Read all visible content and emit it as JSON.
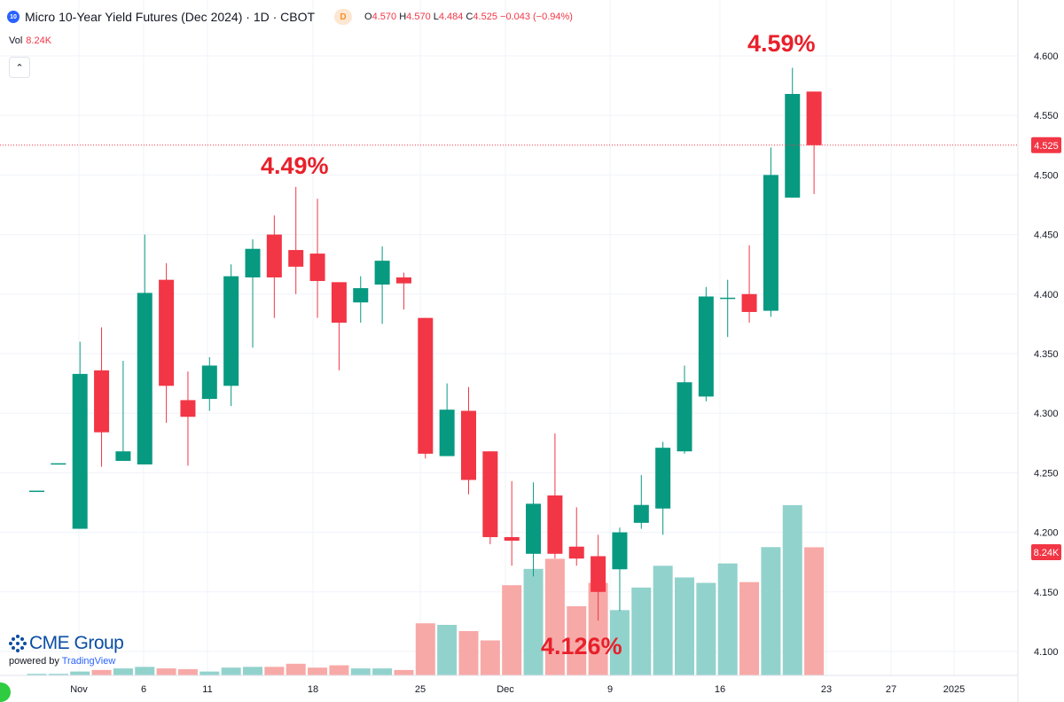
{
  "header": {
    "symbol_badge": "10",
    "title": "Micro 10-Year Yield Futures (Dec 2024) · 1D · CBOT",
    "delay_badge": "D",
    "ohlc": {
      "o_label": "O",
      "o": "4.570",
      "h_label": "H",
      "h": "4.570",
      "l_label": "L",
      "l": "4.484",
      "c_label": "C",
      "c": "4.525",
      "change": "−0.043 (−0.94%)"
    }
  },
  "volume_legend": {
    "label": "Vol",
    "value": "8.24K"
  },
  "annotations": {
    "high": "4.59%",
    "mid_high": "4.49%",
    "low": "4.126%"
  },
  "brand": {
    "name": "CME Group",
    "powered_by": "powered by",
    "platform": "TradingView"
  },
  "colors": {
    "up": "#089981",
    "down": "#f23645",
    "up_vol": "#92d2cc",
    "down_vol": "#f7a9a7",
    "annotation": "#e8202a"
  },
  "chart_data": {
    "type": "candlestick",
    "price_axis": {
      "ticks": [
        4.1,
        4.15,
        4.2,
        4.25,
        4.3,
        4.35,
        4.4,
        4.45,
        4.5,
        4.55,
        4.6
      ]
    },
    "time_axis": {
      "ticks": [
        "Nov",
        "6",
        "11",
        "18",
        "25",
        "Dec",
        "9",
        "16",
        "23",
        "27",
        "2025"
      ]
    },
    "last_price_label": "4.525",
    "volume_label": "8.24K",
    "candles": [
      {
        "o": 4.235,
        "h": 4.235,
        "l": 4.235,
        "c": 4.235,
        "v": 0.1
      },
      {
        "o": 4.258,
        "h": 4.258,
        "l": 4.258,
        "c": 4.258,
        "v": 0.1
      },
      {
        "o": 4.203,
        "h": 4.36,
        "l": 4.203,
        "c": 4.333,
        "v": 0.25
      },
      {
        "o": 4.336,
        "h": 4.372,
        "l": 4.255,
        "c": 4.284,
        "v": 0.35
      },
      {
        "o": 4.26,
        "h": 4.344,
        "l": 4.26,
        "c": 4.268,
        "v": 0.45
      },
      {
        "o": 4.257,
        "h": 4.45,
        "l": 4.257,
        "c": 4.401,
        "v": 0.55
      },
      {
        "o": 4.412,
        "h": 4.426,
        "l": 4.292,
        "c": 4.323,
        "v": 0.45
      },
      {
        "o": 4.311,
        "h": 4.335,
        "l": 4.256,
        "c": 4.297,
        "v": 0.4
      },
      {
        "o": 4.312,
        "h": 4.347,
        "l": 4.302,
        "c": 4.34,
        "v": 0.25
      },
      {
        "o": 4.323,
        "h": 4.425,
        "l": 4.306,
        "c": 4.415,
        "v": 0.5
      },
      {
        "o": 4.414,
        "h": 4.446,
        "l": 4.355,
        "c": 4.438,
        "v": 0.55
      },
      {
        "o": 4.45,
        "h": 4.466,
        "l": 4.38,
        "c": 4.414,
        "v": 0.55
      },
      {
        "o": 4.437,
        "h": 4.49,
        "l": 4.4,
        "c": 4.423,
        "v": 0.75
      },
      {
        "o": 4.434,
        "h": 4.48,
        "l": 4.38,
        "c": 4.411,
        "v": 0.5
      },
      {
        "o": 4.41,
        "h": 4.41,
        "l": 4.336,
        "c": 4.376,
        "v": 0.65
      },
      {
        "o": 4.393,
        "h": 4.415,
        "l": 4.376,
        "c": 4.405,
        "v": 0.45
      },
      {
        "o": 4.408,
        "h": 4.44,
        "l": 4.375,
        "c": 4.428,
        "v": 0.45
      },
      {
        "o": 4.414,
        "h": 4.418,
        "l": 4.387,
        "c": 4.409,
        "v": 0.35
      },
      {
        "o": 4.38,
        "h": 4.38,
        "l": 4.262,
        "c": 4.266,
        "v": 3.35
      },
      {
        "o": 4.264,
        "h": 4.325,
        "l": 4.264,
        "c": 4.303,
        "v": 3.25
      },
      {
        "o": 4.302,
        "h": 4.322,
        "l": 4.232,
        "c": 4.244,
        "v": 2.85
      },
      {
        "o": 4.268,
        "h": 4.268,
        "l": 4.19,
        "c": 4.196,
        "v": 2.25
      },
      {
        "o": 4.196,
        "h": 4.243,
        "l": 4.172,
        "c": 4.193,
        "v": 5.8
      },
      {
        "o": 4.182,
        "h": 4.242,
        "l": 4.163,
        "c": 4.224,
        "v": 6.85
      },
      {
        "o": 4.231,
        "h": 4.283,
        "l": 4.178,
        "c": 4.182,
        "v": 7.5
      },
      {
        "o": 4.188,
        "h": 4.221,
        "l": 4.172,
        "c": 4.178,
        "v": 4.45
      },
      {
        "o": 4.18,
        "h": 4.198,
        "l": 4.126,
        "c": 4.15,
        "v": 5.95
      },
      {
        "o": 4.169,
        "h": 4.204,
        "l": 4.134,
        "c": 4.2,
        "v": 4.2
      },
      {
        "o": 4.208,
        "h": 4.248,
        "l": 4.203,
        "c": 4.223,
        "v": 5.65
      },
      {
        "o": 4.22,
        "h": 4.276,
        "l": 4.198,
        "c": 4.271,
        "v": 7.05
      },
      {
        "o": 4.268,
        "h": 4.34,
        "l": 4.266,
        "c": 4.326,
        "v": 6.3
      },
      {
        "o": 4.314,
        "h": 4.406,
        "l": 4.31,
        "c": 4.398,
        "v": 5.95
      },
      {
        "o": 4.397,
        "h": 4.412,
        "l": 4.364,
        "c": 4.397,
        "v": 7.2
      },
      {
        "o": 4.4,
        "h": 4.441,
        "l": 4.376,
        "c": 4.385,
        "v": 6.0
      },
      {
        "o": 4.386,
        "h": 4.523,
        "l": 4.381,
        "c": 4.5,
        "v": 8.25
      },
      {
        "o": 4.481,
        "h": 4.59,
        "l": 4.481,
        "c": 4.568,
        "v": 10.95
      },
      {
        "o": 4.57,
        "h": 4.57,
        "l": 4.484,
        "c": 4.525,
        "v": 8.24
      }
    ]
  }
}
